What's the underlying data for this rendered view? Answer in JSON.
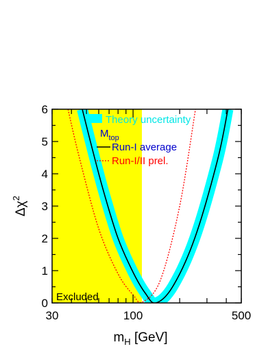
{
  "chart_data": {
    "type": "line",
    "xlabel": "m",
    "xlabel_sub": "H",
    "xlabel_unit": " [GeV]",
    "ylabel": "Δχ",
    "ylabel_sup": "2",
    "xscale": "log",
    "xlim": [
      30,
      500
    ],
    "ylim": [
      0,
      6
    ],
    "x_ticks": [
      30,
      100,
      500
    ],
    "y_ticks": [
      0,
      1,
      2,
      3,
      4,
      5,
      6
    ],
    "excluded_region": {
      "x": [
        30,
        114
      ],
      "label": "Excluded",
      "color": "#ffff00"
    },
    "legend": {
      "band_label": "Theory uncertainty",
      "header": "M",
      "header_sub": "top",
      "position": "top-right"
    },
    "series": [
      {
        "name": "Run-I average",
        "style": "solid",
        "color": "#000000",
        "band_color": "#00ffff",
        "x": [
          47,
          55,
          65,
          80,
          100,
          120,
          140,
          180,
          250,
          350,
          410
        ],
        "y": [
          6.0,
          4.7,
          3.4,
          2.0,
          0.95,
          0.3,
          0.0,
          0.5,
          2.0,
          4.4,
          6.0
        ]
      },
      {
        "name": "Run-I/II prel.",
        "style": "dotted",
        "color": "#ff0000",
        "x": [
          38,
          45,
          60,
          80,
          100,
          115,
          150,
          200,
          253
        ],
        "y": [
          6.0,
          4.5,
          2.3,
          0.9,
          0.25,
          0.03,
          0.7,
          3.0,
          6.0
        ]
      }
    ]
  }
}
